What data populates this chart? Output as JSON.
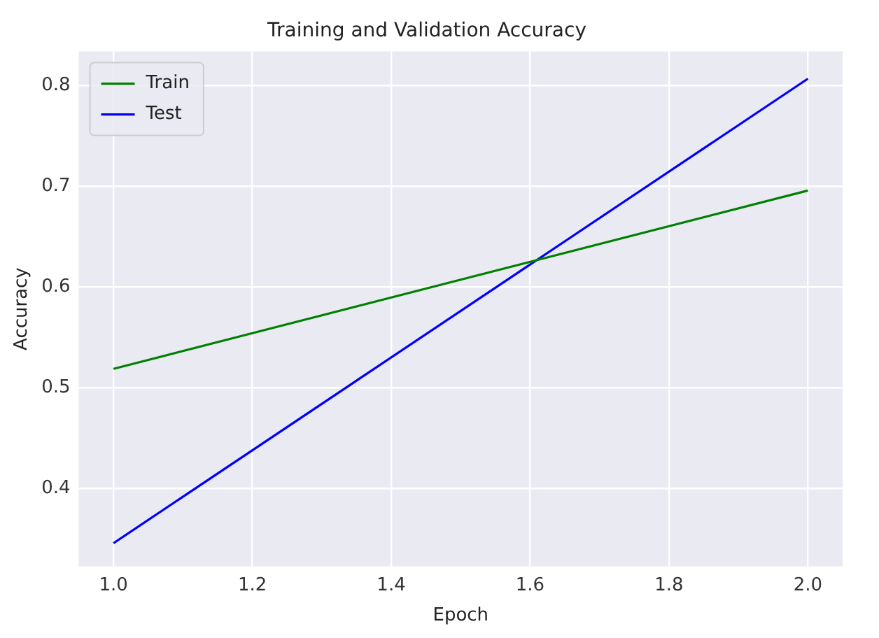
{
  "chart_data": {
    "type": "line",
    "title": "Training and Validation Accuracy",
    "xlabel": "Epoch",
    "ylabel": "Accuracy",
    "x": [
      1,
      2
    ],
    "series": [
      {
        "name": "Train",
        "color": "#008000",
        "values": [
          0.519,
          0.696
        ]
      },
      {
        "name": "Test",
        "color": "#0000ff",
        "values": [
          0.346,
          0.807
        ]
      }
    ],
    "xlim": [
      0.95,
      2.05
    ],
    "xticks": [
      {
        "value": 1,
        "label": "1.0"
      },
      1.2,
      1.4,
      1.6,
      1.8,
      {
        "value": 2,
        "label": "2.0"
      }
    ],
    "ylim": [
      0.323,
      0.834
    ],
    "yticks": [
      0.4,
      0.5,
      0.6,
      0.7,
      0.8
    ],
    "grid": true,
    "legend": "top left",
    "marker": "none",
    "line_style": "solid"
  }
}
